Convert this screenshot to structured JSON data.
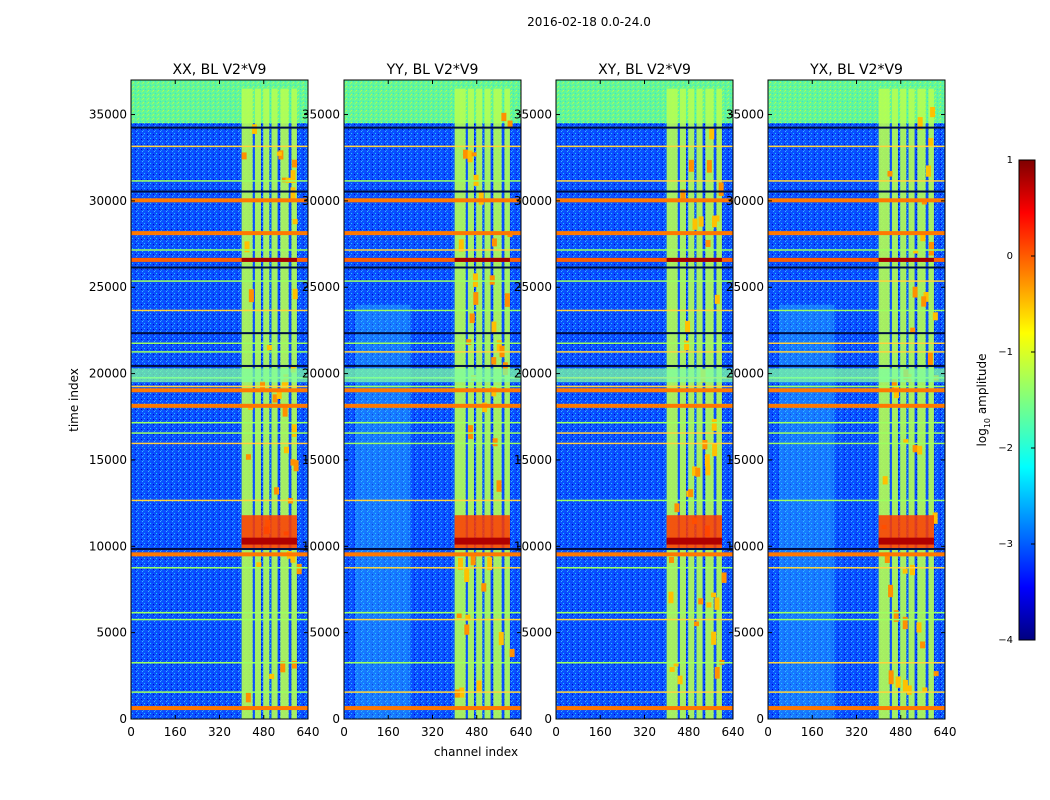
{
  "figure_title": "2016-02-18 0.0-24.0",
  "chart_data": {
    "type": "heatmap",
    "suptitle": "2016-02-18 0.0-24.0",
    "xlabel": "channel index",
    "ylabel": "time index",
    "xlim": [
      0,
      640
    ],
    "ylim": [
      0,
      37000
    ],
    "xticks": [
      0,
      160,
      320,
      480,
      640
    ],
    "yticks": [
      0,
      5000,
      10000,
      15000,
      20000,
      25000,
      30000,
      35000
    ],
    "panels": [
      {
        "title": "XX, BL V2*V9",
        "pol": "XX"
      },
      {
        "title": "YY, BL V2*V9",
        "pol": "YY"
      },
      {
        "title": "XY, BL V2*V9",
        "pol": "XY"
      },
      {
        "title": "YX, BL V2*V9",
        "pol": "YX"
      }
    ],
    "colorbar": {
      "label": "log10 amplitude",
      "label_main": "log",
      "label_sub": "10",
      "label_rest": " amplitude",
      "range": [
        -4,
        1
      ],
      "ticks": [
        1,
        0,
        -1,
        -2,
        -3,
        -4
      ],
      "tick_labels": [
        "1",
        "0",
        "−1",
        "−2",
        "−3",
        "−4"
      ],
      "colormap": "jet"
    },
    "features": {
      "rfi_channel_band": [
        400,
        600
      ],
      "high_amplitude_rows": [
        26500,
        10300,
        28000,
        18900,
        9400,
        500
      ]
    }
  }
}
